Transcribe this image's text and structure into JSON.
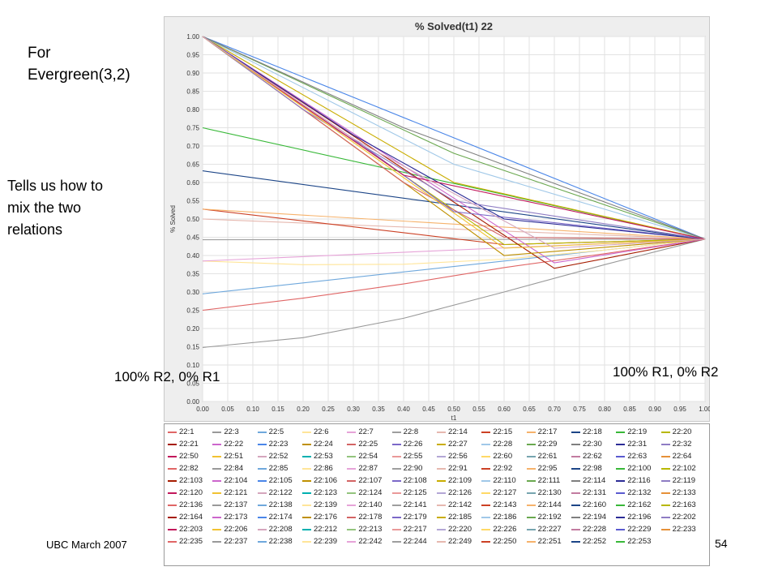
{
  "slide": {
    "note_top": "For\nEvergreen(3,2)",
    "note_mid": "Tells us how to\nmix the two\nrelations",
    "annotation_left": "100% R2, 0% R1",
    "annotation_right": "100% R1, 0% R2",
    "footer_left": "UBC March 2007",
    "page_number": "54"
  },
  "chart_data": {
    "type": "line",
    "title": "% Solved(t1) 22",
    "xlabel": "t1",
    "ylabel": "% Solved",
    "xlim": [
      0,
      1
    ],
    "ylim": [
      0,
      1
    ],
    "x_ticks": [
      "0.00",
      "0.05",
      "0.10",
      "0.15",
      "0.20",
      "0.25",
      "0.30",
      "0.35",
      "0.40",
      "0.45",
      "0.50",
      "0.55",
      "0.60",
      "0.65",
      "0.70",
      "0.75",
      "0.80",
      "0.85",
      "0.90",
      "0.95",
      "1.00"
    ],
    "y_ticks": [
      "0.00",
      "0.05",
      "0.10",
      "0.15",
      "0.20",
      "0.25",
      "0.30",
      "0.35",
      "0.40",
      "0.45",
      "0.50",
      "0.55",
      "0.60",
      "0.65",
      "0.70",
      "0.75",
      "0.80",
      "0.85",
      "0.90",
      "0.95",
      "1.00"
    ],
    "grid": true,
    "legend_position": "bottom",
    "series_colors": [
      "#e06666",
      "#999999",
      "#6fa8dc",
      "#ffe599",
      "#e6a3d8",
      "#9e9e9e",
      "#e6b8af",
      "#cc4125",
      "#f6b26b",
      "#1c4587",
      "#38b838",
      "#b8b800",
      "#a61c00",
      "#cc66cc",
      "#4a86e8",
      "#bf9000",
      "#d36464",
      "#7b68c8",
      "#c9ad00",
      "#a0c8e8",
      "#6aa84f",
      "#7f7f7f",
      "#2c2c96",
      "#8e7cc3",
      "#c2185b",
      "#f1c232",
      "#d5a6bd",
      "#00b0b0",
      "#93c47d",
      "#ea9999",
      "#b4a7d6",
      "#ffd966",
      "#76a5af",
      "#c27ba0",
      "#5a5ad0",
      "#e69138"
    ],
    "series": [
      {
        "name": "22:1",
        "x": [
          0,
          0.2,
          0.4,
          0.6,
          0.8,
          1
        ],
        "y": [
          0.25,
          0.283,
          0.322,
          0.367,
          0.405,
          0.445
        ]
      },
      {
        "name": "22:3",
        "x": [
          0,
          0.2,
          0.4,
          0.6,
          0.8,
          1
        ],
        "y": [
          0.148,
          0.175,
          0.228,
          0.3,
          0.375,
          0.445
        ]
      },
      {
        "name": "22:5",
        "x": [
          0,
          1
        ],
        "y": [
          0.295,
          0.445
        ]
      },
      {
        "name": "22:6",
        "x": [
          0,
          0.2,
          0.4,
          0.6,
          0.8,
          1
        ],
        "y": [
          0.385,
          0.375,
          0.376,
          0.39,
          0.415,
          0.445
        ]
      },
      {
        "name": "22:7",
        "x": [
          0,
          1
        ],
        "y": [
          0.385,
          0.445
        ]
      },
      {
        "name": "22:8",
        "x": [
          0,
          1
        ],
        "y": [
          0.443,
          0.445
        ]
      },
      {
        "name": "22:14",
        "x": [
          0,
          1
        ],
        "y": [
          0.5,
          0.445
        ]
      },
      {
        "name": "22:15",
        "x": [
          0,
          0.6,
          1
        ],
        "y": [
          0.527,
          0.43,
          0.445
        ]
      },
      {
        "name": "22:17",
        "x": [
          0,
          1
        ],
        "y": [
          0.527,
          0.445
        ]
      },
      {
        "name": "22:18",
        "x": [
          0,
          1
        ],
        "y": [
          0.632,
          0.445
        ]
      },
      {
        "name": "22:19",
        "x": [
          0,
          1
        ],
        "y": [
          0.75,
          0.445
        ]
      },
      {
        "name": "22:20",
        "x": [
          0,
          0.6,
          1
        ],
        "y": [
          1,
          0.43,
          0.445
        ]
      },
      {
        "name": "22:21",
        "x": [
          0,
          0.7,
          1
        ],
        "y": [
          1,
          0.365,
          0.445
        ]
      },
      {
        "name": "22:22",
        "x": [
          0,
          0.7,
          1
        ],
        "y": [
          1,
          0.38,
          0.445
        ]
      },
      {
        "name": "22:23",
        "x": [
          0,
          1
        ],
        "y": [
          1,
          0.445
        ]
      },
      {
        "name": "22:24",
        "x": [
          0,
          0.4,
          0.6,
          1
        ],
        "y": [
          1,
          0.6,
          0.4,
          0.445
        ]
      },
      {
        "name": "22:25",
        "x": [
          0,
          0.2,
          0.4,
          0.6,
          1
        ],
        "y": [
          1,
          0.8,
          0.6,
          0.45,
          0.445
        ]
      },
      {
        "name": "22:26",
        "x": [
          0,
          0.3,
          0.5,
          1
        ],
        "y": [
          1,
          0.72,
          0.52,
          0.445
        ]
      },
      {
        "name": "22:27",
        "x": [
          0,
          0.5,
          1
        ],
        "y": [
          1,
          0.6,
          0.445
        ]
      },
      {
        "name": "22:28",
        "x": [
          0,
          0.5,
          1
        ],
        "y": [
          1,
          0.65,
          0.445
        ]
      },
      {
        "name": "22:29",
        "x": [
          0,
          0.5,
          1
        ],
        "y": [
          1,
          0.68,
          0.445
        ]
      },
      {
        "name": "22:30",
        "x": [
          0,
          0.4,
          1
        ],
        "y": [
          1,
          0.75,
          0.445
        ]
      },
      {
        "name": "22:31",
        "x": [
          0,
          0.3,
          0.6,
          1
        ],
        "y": [
          1,
          0.73,
          0.5,
          0.445
        ]
      },
      {
        "name": "22:32",
        "x": [
          0,
          0.2,
          0.5,
          1
        ],
        "y": [
          1,
          0.8,
          0.55,
          0.445
        ]
      },
      {
        "name": "22:50",
        "x": [
          0,
          0.4,
          1
        ],
        "y": [
          1,
          0.62,
          0.445
        ]
      },
      {
        "name": "22:51",
        "x": [
          0,
          0.6,
          1
        ],
        "y": [
          1,
          0.42,
          0.445
        ]
      },
      {
        "name": "22:52",
        "x": [
          0,
          0.3,
          0.7,
          1
        ],
        "y": [
          1,
          0.72,
          0.42,
          0.445
        ]
      }
    ]
  },
  "legend": {
    "items": [
      {
        "label": "22:1",
        "color": "#e06666"
      },
      {
        "label": "22:3",
        "color": "#999999"
      },
      {
        "label": "22:5",
        "color": "#6fa8dc"
      },
      {
        "label": "22:6",
        "color": "#ffe599"
      },
      {
        "label": "22:7",
        "color": "#e6a3d8"
      },
      {
        "label": "22:8",
        "color": "#9e9e9e"
      },
      {
        "label": "22:14",
        "color": "#e6b8af"
      },
      {
        "label": "22:15",
        "color": "#cc4125"
      },
      {
        "label": "22:17",
        "color": "#f6b26b"
      },
      {
        "label": "22:18",
        "color": "#1c4587"
      },
      {
        "label": "22:19",
        "color": "#38b838"
      },
      {
        "label": "22:20",
        "color": "#b8b800"
      },
      {
        "label": "22:21",
        "color": "#a61c00"
      },
      {
        "label": "22:22",
        "color": "#cc66cc"
      },
      {
        "label": "22:23",
        "color": "#4a86e8"
      },
      {
        "label": "22:24",
        "color": "#bf9000"
      },
      {
        "label": "22:25",
        "color": "#d36464"
      },
      {
        "label": "22:26",
        "color": "#7b68c8"
      },
      {
        "label": "22:27",
        "color": "#c9ad00"
      },
      {
        "label": "22:28",
        "color": "#a0c8e8"
      },
      {
        "label": "22:29",
        "color": "#6aa84f"
      },
      {
        "label": "22:30",
        "color": "#7f7f7f"
      },
      {
        "label": "22:31",
        "color": "#2c2c96"
      },
      {
        "label": "22:32",
        "color": "#8e7cc3"
      },
      {
        "label": "22:50",
        "color": "#c2185b"
      },
      {
        "label": "22:51",
        "color": "#f1c232"
      },
      {
        "label": "22:52",
        "color": "#d5a6bd"
      },
      {
        "label": "22:53",
        "color": "#00b0b0"
      },
      {
        "label": "22:54",
        "color": "#93c47d"
      },
      {
        "label": "22:55",
        "color": "#ea9999"
      },
      {
        "label": "22:56",
        "color": "#b4a7d6"
      },
      {
        "label": "22:60",
        "color": "#ffd966"
      },
      {
        "label": "22:61",
        "color": "#76a5af"
      },
      {
        "label": "22:62",
        "color": "#c27ba0"
      },
      {
        "label": "22:63",
        "color": "#5a5ad0"
      },
      {
        "label": "22:64",
        "color": "#e69138"
      },
      {
        "label": "22:82",
        "color": "#e06666"
      },
      {
        "label": "22:84",
        "color": "#999999"
      },
      {
        "label": "22:85",
        "color": "#6fa8dc"
      },
      {
        "label": "22:86",
        "color": "#ffe599"
      },
      {
        "label": "22:87",
        "color": "#e6a3d8"
      },
      {
        "label": "22:90",
        "color": "#9e9e9e"
      },
      {
        "label": "22:91",
        "color": "#e6b8af"
      },
      {
        "label": "22:92",
        "color": "#cc4125"
      },
      {
        "label": "22:95",
        "color": "#f6b26b"
      },
      {
        "label": "22:98",
        "color": "#1c4587"
      },
      {
        "label": "22:100",
        "color": "#38b838"
      },
      {
        "label": "22:102",
        "color": "#b8b800"
      },
      {
        "label": "22:103",
        "color": "#a61c00"
      },
      {
        "label": "22:104",
        "color": "#cc66cc"
      },
      {
        "label": "22:105",
        "color": "#4a86e8"
      },
      {
        "label": "22:106",
        "color": "#bf9000"
      },
      {
        "label": "22:107",
        "color": "#d36464"
      },
      {
        "label": "22:108",
        "color": "#7b68c8"
      },
      {
        "label": "22:109",
        "color": "#c9ad00"
      },
      {
        "label": "22:110",
        "color": "#a0c8e8"
      },
      {
        "label": "22:111",
        "color": "#6aa84f"
      },
      {
        "label": "22:114",
        "color": "#7f7f7f"
      },
      {
        "label": "22:116",
        "color": "#2c2c96"
      },
      {
        "label": "22:119",
        "color": "#8e7cc3"
      },
      {
        "label": "22:120",
        "color": "#c2185b"
      },
      {
        "label": "22:121",
        "color": "#f1c232"
      },
      {
        "label": "22:122",
        "color": "#d5a6bd"
      },
      {
        "label": "22:123",
        "color": "#00b0b0"
      },
      {
        "label": "22:124",
        "color": "#93c47d"
      },
      {
        "label": "22:125",
        "color": "#ea9999"
      },
      {
        "label": "22:126",
        "color": "#b4a7d6"
      },
      {
        "label": "22:127",
        "color": "#ffd966"
      },
      {
        "label": "22:130",
        "color": "#76a5af"
      },
      {
        "label": "22:131",
        "color": "#c27ba0"
      },
      {
        "label": "22:132",
        "color": "#5a5ad0"
      },
      {
        "label": "22:133",
        "color": "#e69138"
      },
      {
        "label": "22:136",
        "color": "#e06666"
      },
      {
        "label": "22:137",
        "color": "#999999"
      },
      {
        "label": "22:138",
        "color": "#6fa8dc"
      },
      {
        "label": "22:139",
        "color": "#ffe599"
      },
      {
        "label": "22:140",
        "color": "#e6a3d8"
      },
      {
        "label": "22:141",
        "color": "#9e9e9e"
      },
      {
        "label": "22:142",
        "color": "#e6b8af"
      },
      {
        "label": "22:143",
        "color": "#cc4125"
      },
      {
        "label": "22:144",
        "color": "#f6b26b"
      },
      {
        "label": "22:160",
        "color": "#1c4587"
      },
      {
        "label": "22:162",
        "color": "#38b838"
      },
      {
        "label": "22:163",
        "color": "#b8b800"
      },
      {
        "label": "22:164",
        "color": "#a61c00"
      },
      {
        "label": "22:173",
        "color": "#cc66cc"
      },
      {
        "label": "22:174",
        "color": "#4a86e8"
      },
      {
        "label": "22:176",
        "color": "#bf9000"
      },
      {
        "label": "22:178",
        "color": "#d36464"
      },
      {
        "label": "22:179",
        "color": "#7b68c8"
      },
      {
        "label": "22:185",
        "color": "#c9ad00"
      },
      {
        "label": "22:186",
        "color": "#a0c8e8"
      },
      {
        "label": "22:192",
        "color": "#6aa84f"
      },
      {
        "label": "22:194",
        "color": "#7f7f7f"
      },
      {
        "label": "22:196",
        "color": "#2c2c96"
      },
      {
        "label": "22:202",
        "color": "#8e7cc3"
      },
      {
        "label": "22:203",
        "color": "#c2185b"
      },
      {
        "label": "22:206",
        "color": "#f1c232"
      },
      {
        "label": "22:208",
        "color": "#d5a6bd"
      },
      {
        "label": "22:212",
        "color": "#00b0b0"
      },
      {
        "label": "22:213",
        "color": "#93c47d"
      },
      {
        "label": "22:217",
        "color": "#ea9999"
      },
      {
        "label": "22:220",
        "color": "#b4a7d6"
      },
      {
        "label": "22:226",
        "color": "#ffd966"
      },
      {
        "label": "22:227",
        "color": "#76a5af"
      },
      {
        "label": "22:228",
        "color": "#c27ba0"
      },
      {
        "label": "22:229",
        "color": "#5a5ad0"
      },
      {
        "label": "22:233",
        "color": "#e69138"
      },
      {
        "label": "22:235",
        "color": "#e06666"
      },
      {
        "label": "22:237",
        "color": "#999999"
      },
      {
        "label": "22:238",
        "color": "#6fa8dc"
      },
      {
        "label": "22:239",
        "color": "#ffe599"
      },
      {
        "label": "22:242",
        "color": "#e6a3d8"
      },
      {
        "label": "22:244",
        "color": "#9e9e9e"
      },
      {
        "label": "22:249",
        "color": "#e6b8af"
      },
      {
        "label": "22:250",
        "color": "#cc4125"
      },
      {
        "label": "22:251",
        "color": "#f6b26b"
      },
      {
        "label": "22:252",
        "color": "#1c4587"
      },
      {
        "label": "22:253",
        "color": "#38b838"
      }
    ]
  }
}
